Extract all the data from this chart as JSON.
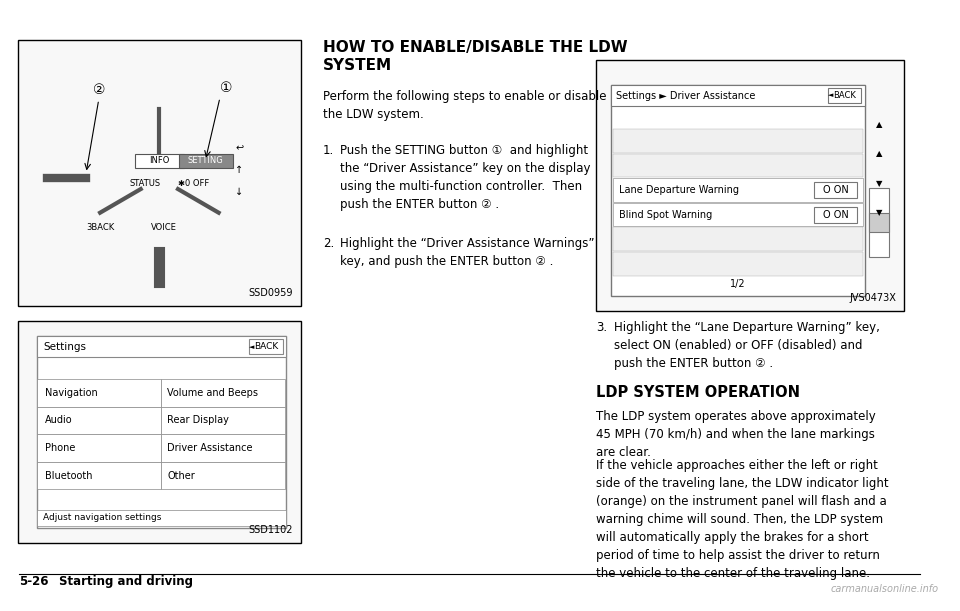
{
  "bg_color": "#ffffff",
  "border_color": "#000000",
  "text_color": "#000000",
  "gray_color": "#888888",
  "light_gray": "#cccccc",
  "page_label": "5-26",
  "page_label_bold": "Starting and driving",
  "watermark": "carmanualsonline.info",
  "section_title_line1": "HOW TO ENABLE/DISABLE THE LDW",
  "section_title_line2": "SYSTEM",
  "intro_text": "Perform the following steps to enable or disable\nthe LDW system.",
  "step1_num": "1.",
  "step1_text": "Push the SETTING button ①  and highlight\nthe “Driver Assistance” key on the display\nusing the multi-function controller.  Then\npush the ENTER button ② .",
  "step2_num": "2.",
  "step2_text": "Highlight the “Driver Assistance Warnings”\nkey, and push the ENTER button ② .",
  "step3_num": "3.",
  "step3_text": "Highlight the “Lane Departure Warning” key,\nselect ON (enabled) or OFF (disabled) and\npush the ENTER button ② .",
  "ldp_title": "LDP SYSTEM OPERATION",
  "ldp_para1": "The LDP system operates above approximately\n45 MPH (70 km/h) and when the lane markings\nare clear.",
  "ldp_para2": "If the vehicle approaches either the left or right\nside of the traveling lane, the LDW indicator light\n(orange) on the instrument panel will flash and a\nwarning chime will sound. Then, the LDP system\nwill automatically apply the brakes for a short\nperiod of time to help assist the driver to return\nthe vehicle to the center of the traveling lane.",
  "img1_label": "SSD0959",
  "img2_label": "SSD1102",
  "img3_label": "JVS0473X",
  "screen2_title": "Settings",
  "screen2_back": "BACK",
  "screen2_items_col1": [
    "Navigation",
    "Audio",
    "Phone",
    "Bluetooth"
  ],
  "screen2_items_col2": [
    "Volume and Beeps",
    "Rear Display",
    "Driver Assistance",
    "Other"
  ],
  "screen2_footer": "Adjust navigation settings",
  "screen3_title": "Settings ► Driver Assistance",
  "screen3_back": "BACK",
  "screen3_items": [
    "Lane Departure Warning",
    "Blind Spot Warning"
  ],
  "screen3_values": [
    "O ON",
    "O ON"
  ],
  "screen3_page": "1/2"
}
